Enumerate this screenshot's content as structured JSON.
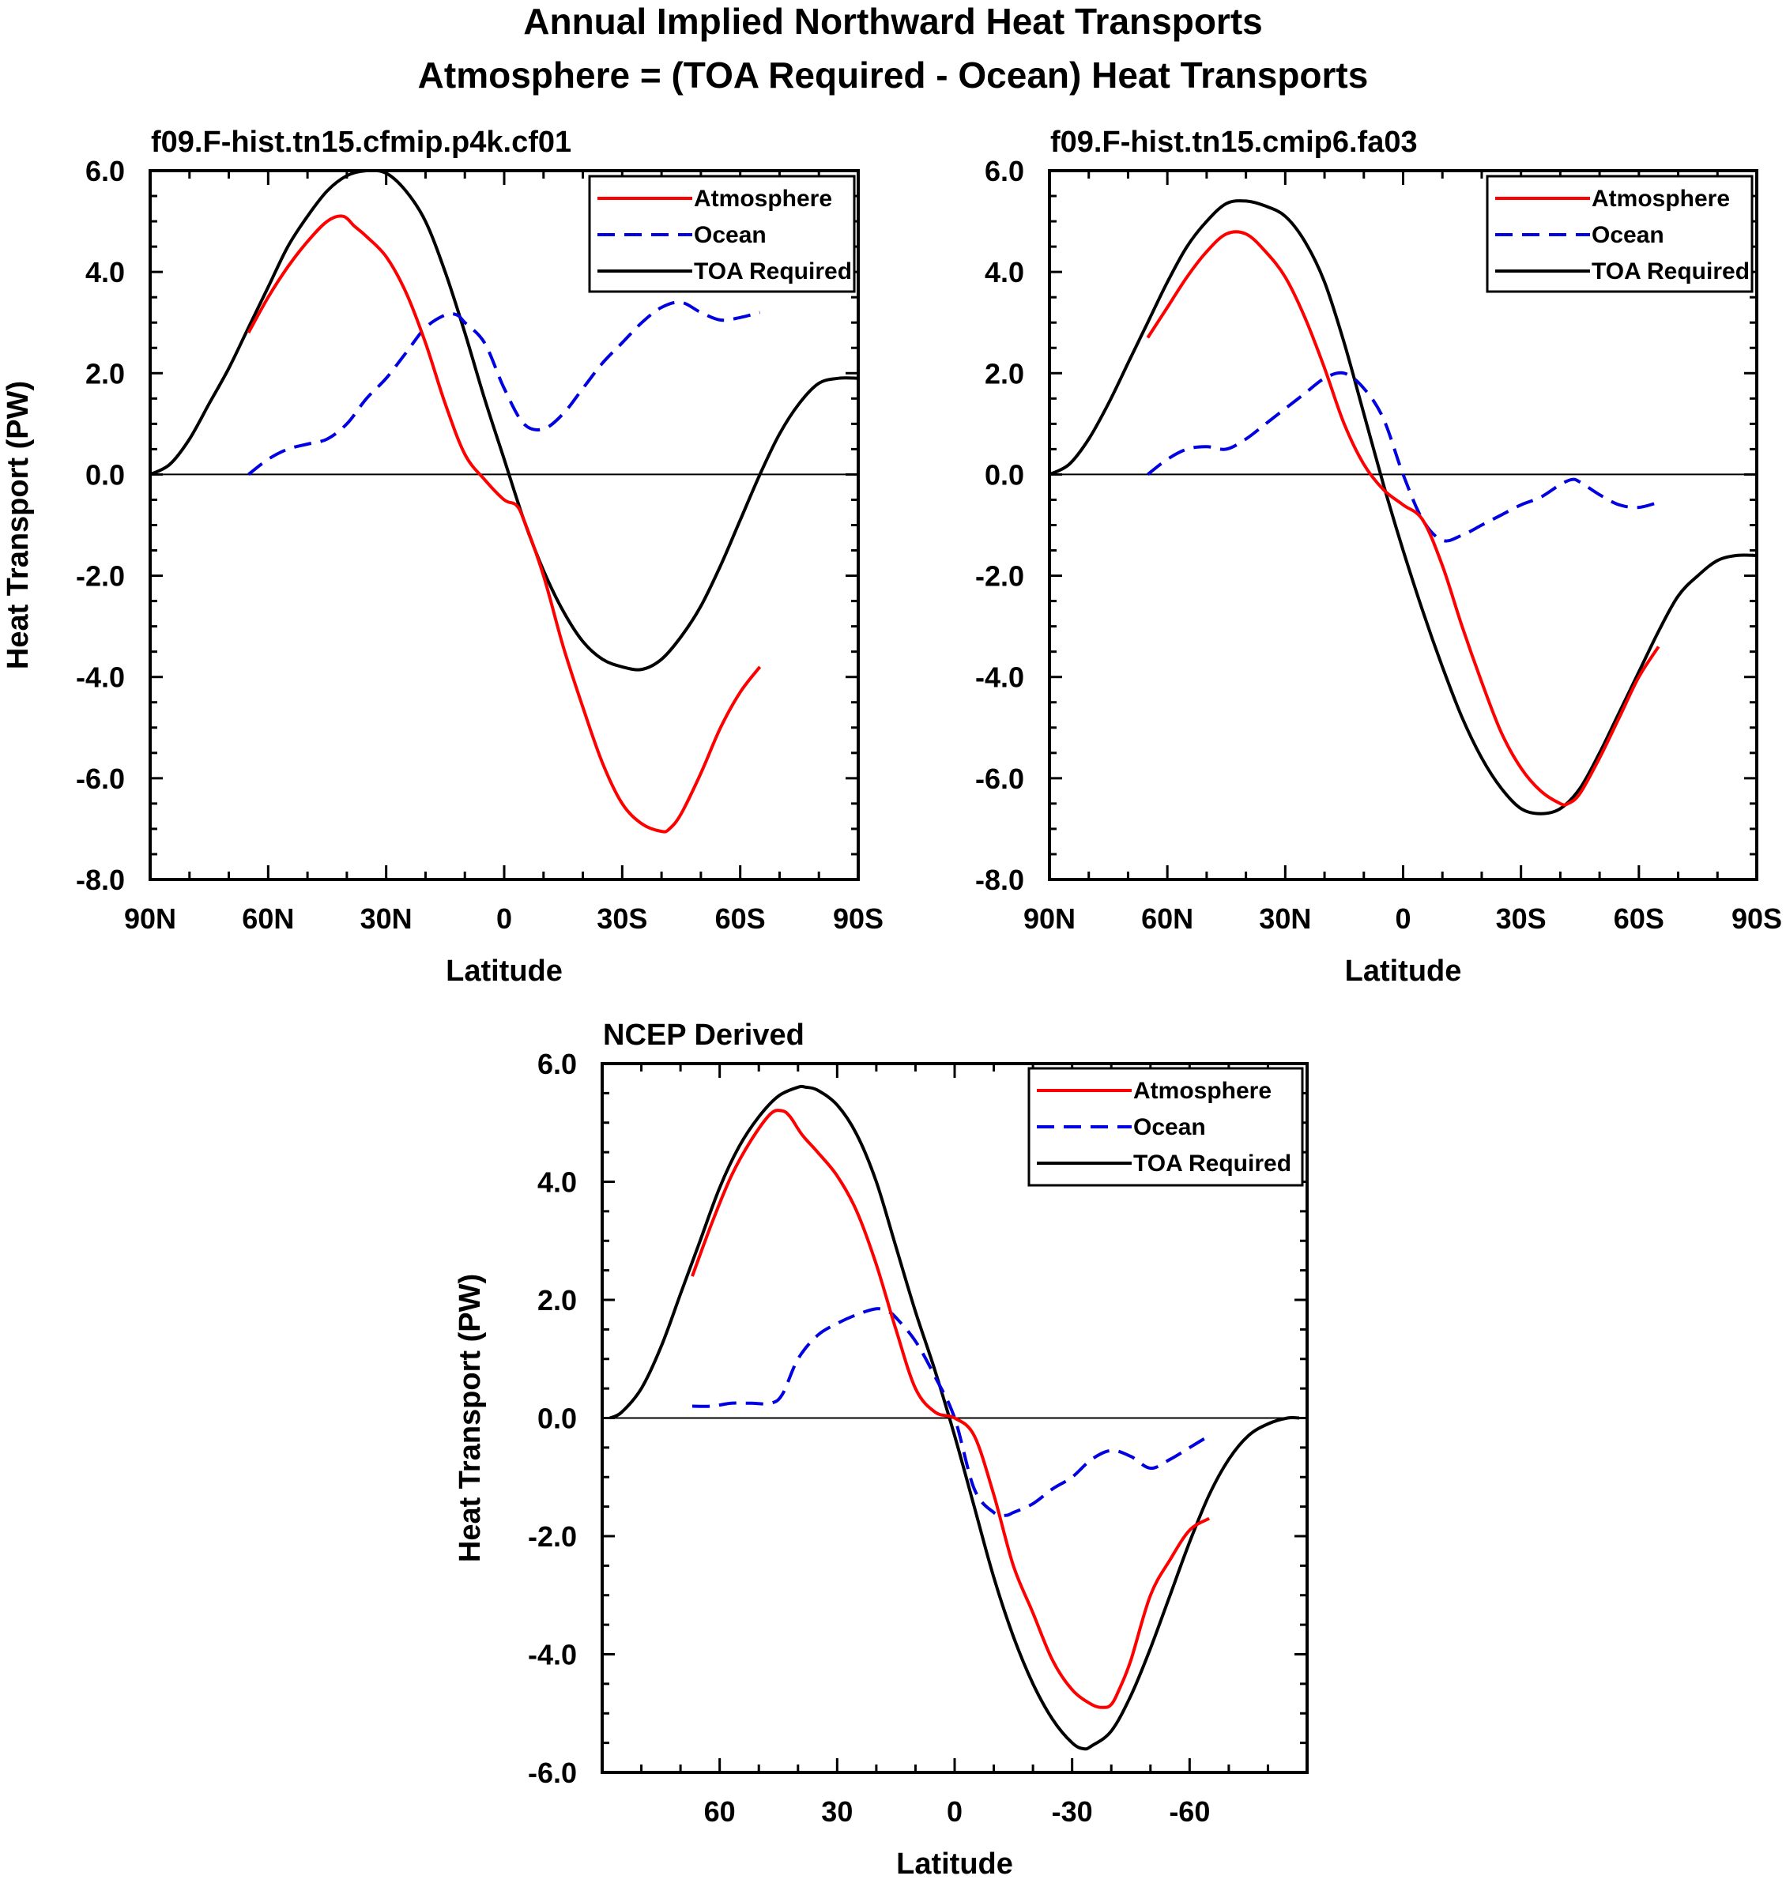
{
  "figure": {
    "title_line1": "Annual Implied Northward Heat Transports",
    "title_line2": "Atmosphere = (TOA Required - Ocean) Heat Transports"
  },
  "colors": {
    "atmosphere": "#ff0000",
    "ocean": "#0000e0",
    "toa": "#000000"
  },
  "chart_data": [
    {
      "type": "line",
      "title": "f09.F-hist.tn15.cfmip.p4k.cf01",
      "xlabel": "Latitude",
      "ylabel": "Heat Transport (PW)",
      "xlim": [
        90,
        -90
      ],
      "ylim": [
        -8,
        6
      ],
      "x_ticks": [
        90,
        60,
        30,
        0,
        -30,
        -60,
        -90
      ],
      "x_tick_labels": [
        "90N",
        "60N",
        "30N",
        "0",
        "30S",
        "60S",
        "90S"
      ],
      "y_ticks": [
        6,
        4,
        2,
        0,
        -2,
        -4,
        -6,
        -8
      ],
      "y_tick_labels": [
        "6.0",
        "4.0",
        "2.0",
        "0.0",
        "-2.0",
        "-4.0",
        "-6.0",
        "-8.0"
      ],
      "legend": [
        "Atmosphere",
        "Ocean",
        "TOA Required"
      ],
      "legend_position": "top-right",
      "series": [
        {
          "name": "Atmosphere",
          "style": "solid",
          "color": "#ff0000",
          "x": [
            65,
            60,
            55,
            50,
            45,
            41,
            38,
            35,
            30,
            25,
            20,
            15,
            10,
            5,
            0,
            -3,
            -5,
            -10,
            -15,
            -20,
            -25,
            -30,
            -35,
            -40,
            -42,
            -45,
            -50,
            -55,
            -60,
            -65
          ],
          "y": [
            2.8,
            3.5,
            4.1,
            4.6,
            5.0,
            5.1,
            4.9,
            4.7,
            4.3,
            3.6,
            2.6,
            1.4,
            0.4,
            -0.1,
            -0.5,
            -0.6,
            -0.9,
            -2.0,
            -3.4,
            -4.6,
            -5.7,
            -6.5,
            -6.9,
            -7.05,
            -7.0,
            -6.7,
            -5.9,
            -5.0,
            -4.3,
            -3.8
          ]
        },
        {
          "name": "Ocean",
          "style": "dashed",
          "color": "#0000e0",
          "x": [
            65,
            60,
            55,
            50,
            45,
            40,
            35,
            30,
            25,
            20,
            15,
            12,
            10,
            5,
            0,
            -5,
            -10,
            -15,
            -20,
            -25,
            -30,
            -35,
            -40,
            -45,
            -50,
            -55,
            -60,
            -65
          ],
          "y": [
            0.0,
            0.3,
            0.5,
            0.6,
            0.7,
            1.0,
            1.5,
            1.9,
            2.4,
            2.9,
            3.15,
            3.15,
            3.0,
            2.6,
            1.7,
            1.0,
            0.9,
            1.2,
            1.7,
            2.2,
            2.6,
            3.0,
            3.3,
            3.4,
            3.2,
            3.05,
            3.1,
            3.2
          ]
        },
        {
          "name": "TOA Required",
          "style": "solid",
          "color": "#000000",
          "x": [
            90,
            85,
            80,
            75,
            70,
            65,
            60,
            55,
            50,
            45,
            40,
            35,
            30,
            25,
            20,
            15,
            10,
            5,
            0,
            -5,
            -10,
            -15,
            -20,
            -25,
            -30,
            -35,
            -40,
            -45,
            -50,
            -55,
            -60,
            -65,
            -70,
            -75,
            -80,
            -85,
            -90
          ],
          "y": [
            0.0,
            0.2,
            0.7,
            1.4,
            2.1,
            2.9,
            3.7,
            4.5,
            5.1,
            5.6,
            5.9,
            6.0,
            5.95,
            5.6,
            5.0,
            4.0,
            2.8,
            1.5,
            0.3,
            -0.9,
            -1.9,
            -2.7,
            -3.3,
            -3.65,
            -3.8,
            -3.85,
            -3.65,
            -3.2,
            -2.6,
            -1.8,
            -0.9,
            0.0,
            0.8,
            1.4,
            1.8,
            1.9,
            1.9
          ]
        }
      ]
    },
    {
      "type": "line",
      "title": "f09.F-hist.tn15.cmip6.fa03",
      "xlabel": "Latitude",
      "ylabel": "",
      "xlim": [
        90,
        -90
      ],
      "ylim": [
        -8,
        6
      ],
      "x_ticks": [
        90,
        60,
        30,
        0,
        -30,
        -60,
        -90
      ],
      "x_tick_labels": [
        "90N",
        "60N",
        "30N",
        "0",
        "30S",
        "60S",
        "90S"
      ],
      "y_ticks": [
        6,
        4,
        2,
        0,
        -2,
        -4,
        -6,
        -8
      ],
      "y_tick_labels": [
        "6.0",
        "4.0",
        "2.0",
        "0.0",
        "-2.0",
        "-4.0",
        "-6.0",
        "-8.0"
      ],
      "legend": [
        "Atmosphere",
        "Ocean",
        "TOA Required"
      ],
      "legend_position": "top-right",
      "series": [
        {
          "name": "Atmosphere",
          "style": "solid",
          "color": "#ff0000",
          "x": [
            65,
            60,
            55,
            50,
            45,
            40,
            35,
            30,
            25,
            20,
            15,
            10,
            5,
            0,
            -5,
            -10,
            -15,
            -20,
            -25,
            -30,
            -35,
            -40,
            -42,
            -45,
            -50,
            -55,
            -60,
            -65
          ],
          "y": [
            2.7,
            3.3,
            3.9,
            4.4,
            4.75,
            4.75,
            4.4,
            3.9,
            3.1,
            2.1,
            1.0,
            0.2,
            -0.3,
            -0.6,
            -0.9,
            -1.8,
            -3.0,
            -4.1,
            -5.1,
            -5.8,
            -6.25,
            -6.5,
            -6.5,
            -6.3,
            -5.6,
            -4.8,
            -4.0,
            -3.4
          ]
        },
        {
          "name": "Ocean",
          "style": "dashed",
          "color": "#0000e0",
          "x": [
            65,
            60,
            55,
            50,
            45,
            40,
            35,
            30,
            25,
            20,
            15,
            10,
            5,
            0,
            -5,
            -10,
            -15,
            -20,
            -25,
            -30,
            -35,
            -40,
            -43,
            -45,
            -50,
            -55,
            -60,
            -65
          ],
          "y": [
            0.0,
            0.3,
            0.5,
            0.55,
            0.5,
            0.7,
            1.0,
            1.3,
            1.6,
            1.9,
            2.0,
            1.7,
            1.1,
            0.0,
            -0.9,
            -1.3,
            -1.2,
            -1.0,
            -0.8,
            -0.6,
            -0.45,
            -0.2,
            -0.1,
            -0.15,
            -0.4,
            -0.6,
            -0.65,
            -0.55
          ]
        },
        {
          "name": "TOA Required",
          "style": "solid",
          "color": "#000000",
          "x": [
            90,
            85,
            80,
            75,
            70,
            65,
            60,
            55,
            50,
            45,
            40,
            35,
            30,
            25,
            20,
            15,
            10,
            5,
            0,
            -5,
            -10,
            -15,
            -20,
            -25,
            -30,
            -35,
            -40,
            -45,
            -50,
            -55,
            -60,
            -65,
            -70,
            -75,
            -80,
            -85,
            -90
          ],
          "y": [
            0.0,
            0.2,
            0.7,
            1.4,
            2.2,
            3.0,
            3.8,
            4.5,
            5.0,
            5.35,
            5.4,
            5.3,
            5.1,
            4.6,
            3.8,
            2.6,
            1.2,
            -0.2,
            -1.5,
            -2.7,
            -3.8,
            -4.8,
            -5.6,
            -6.2,
            -6.6,
            -6.7,
            -6.6,
            -6.2,
            -5.5,
            -4.7,
            -3.9,
            -3.1,
            -2.4,
            -2.0,
            -1.7,
            -1.6,
            -1.6
          ]
        }
      ]
    },
    {
      "type": "line",
      "title": "NCEP Derived",
      "xlabel": "Latitude",
      "ylabel": "Heat Transport (PW)",
      "xlim": [
        90,
        -90
      ],
      "ylim": [
        -6,
        6
      ],
      "x_ticks": [
        60,
        30,
        0,
        -30,
        -60
      ],
      "x_tick_labels": [
        "60",
        "30",
        "0",
        "-30",
        "-60"
      ],
      "y_ticks": [
        6,
        4,
        2,
        0,
        -2,
        -4,
        -6
      ],
      "y_tick_labels": [
        "6.0",
        "4.0",
        "2.0",
        "0.0",
        "-2.0",
        "-4.0",
        "-6.0"
      ],
      "legend": [
        "Atmosphere",
        "Ocean",
        "TOA Required"
      ],
      "legend_position": "top-right",
      "series": [
        {
          "name": "Atmosphere",
          "style": "solid",
          "color": "#ff0000",
          "x": [
            67,
            62,
            57,
            52,
            47,
            44,
            42,
            39,
            35,
            30,
            25,
            20,
            15,
            10,
            5,
            0,
            -5,
            -10,
            -15,
            -20,
            -25,
            -30,
            -35,
            -38,
            -40,
            -42,
            -45,
            -50,
            -55,
            -60,
            -65
          ],
          "y": [
            2.4,
            3.3,
            4.1,
            4.7,
            5.15,
            5.2,
            5.1,
            4.8,
            4.5,
            4.1,
            3.5,
            2.6,
            1.5,
            0.5,
            0.1,
            0.0,
            -0.3,
            -1.3,
            -2.5,
            -3.3,
            -4.1,
            -4.6,
            -4.85,
            -4.9,
            -4.85,
            -4.6,
            -4.1,
            -3.0,
            -2.4,
            -1.9,
            -1.7
          ]
        },
        {
          "name": "Ocean",
          "style": "dashed",
          "color": "#0000e0",
          "x": [
            67,
            62,
            57,
            52,
            47,
            44,
            40,
            35,
            30,
            25,
            20,
            17,
            15,
            10,
            5,
            0,
            -5,
            -10,
            -13,
            -15,
            -20,
            -25,
            -30,
            -35,
            -40,
            -45,
            -50,
            -55,
            -60,
            -65
          ],
          "y": [
            0.2,
            0.2,
            0.25,
            0.25,
            0.25,
            0.4,
            1.0,
            1.4,
            1.6,
            1.75,
            1.85,
            1.8,
            1.7,
            1.3,
            0.7,
            0.0,
            -1.2,
            -1.6,
            -1.65,
            -1.6,
            -1.45,
            -1.2,
            -1.0,
            -0.7,
            -0.55,
            -0.65,
            -0.85,
            -0.7,
            -0.5,
            -0.3
          ]
        },
        {
          "name": "TOA Required",
          "style": "solid",
          "color": "#000000",
          "x": [
            88,
            85,
            80,
            75,
            70,
            65,
            60,
            55,
            50,
            45,
            40,
            38,
            35,
            30,
            25,
            20,
            15,
            10,
            5,
            0,
            -5,
            -10,
            -15,
            -20,
            -25,
            -30,
            -33,
            -35,
            -40,
            -45,
            -50,
            -55,
            -60,
            -65,
            -70,
            -75,
            -80,
            -85,
            -88
          ],
          "y": [
            0.0,
            0.1,
            0.5,
            1.2,
            2.1,
            3.0,
            3.9,
            4.6,
            5.1,
            5.45,
            5.6,
            5.6,
            5.55,
            5.3,
            4.8,
            4.0,
            2.9,
            1.8,
            0.8,
            -0.3,
            -1.5,
            -2.7,
            -3.7,
            -4.5,
            -5.1,
            -5.5,
            -5.6,
            -5.55,
            -5.3,
            -4.7,
            -3.9,
            -3.0,
            -2.1,
            -1.3,
            -0.7,
            -0.3,
            -0.1,
            0.0,
            0.0
          ]
        }
      ]
    }
  ]
}
